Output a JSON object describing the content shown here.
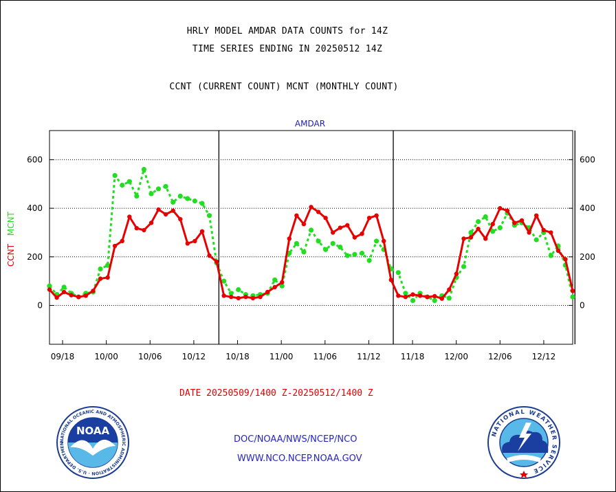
{
  "header": {
    "title_line1": "HRLY MODEL AMDAR DATA COUNTS for 14Z",
    "title_line2": "TIME SERIES ENDING IN 20250512 14Z",
    "subtitle": "CCNT (CURRENT COUNT) MCNT (MONTHLY COUNT)"
  },
  "footer": {
    "date_range": "DATE 20250509/1400 Z-20250512/1400 Z",
    "credit_line1": "DOC/NOAA/NWS/NCEP/NCO",
    "credit_line2": "WWW.NCO.NCEP.NOAA.GOV"
  },
  "logos": {
    "left": "noaa-logo",
    "right": "national-weather-service-logo",
    "left_text": "NOAA",
    "left_ring_text": "NATIONAL OCEANIC AND ATMOSPHERIC ADMINISTRATION · U.S. DEPARTMENT OF COMMERCE",
    "right_ring_text": "NATIONAL WEATHER SERVICE"
  },
  "colors": {
    "ccnt": "#e60000",
    "mcnt": "#22dd22",
    "panel_label": "#2020c0",
    "frame": "#000000"
  },
  "chart_data": {
    "type": "line",
    "title": "AMDAR",
    "ylabel_left": [
      "CCNT",
      "MCNT"
    ],
    "ylim": [
      -160,
      720
    ],
    "yticks": [
      0,
      200,
      400,
      600
    ],
    "grid": "horizontal dotted at y ticks",
    "xticks": [
      "09/18",
      "10/00",
      "10/06",
      "10/12",
      "10/18",
      "11/00",
      "11/06",
      "11/12",
      "11/18",
      "12/00",
      "12/06",
      "12/12"
    ],
    "day_separators_after_hour_index": [
      23,
      47,
      72
    ],
    "series": [
      {
        "name": "CCNT",
        "values": [
          65,
          32,
          55,
          42,
          35,
          40,
          60,
          110,
          115,
          245,
          265,
          365,
          318,
          310,
          340,
          395,
          375,
          390,
          355,
          255,
          265,
          305,
          205,
          180,
          40,
          35,
          30,
          35,
          30,
          35,
          55,
          75,
          95,
          275,
          370,
          335,
          405,
          385,
          360,
          300,
          320,
          330,
          280,
          295,
          360,
          370,
          265,
          105,
          40,
          35,
          45,
          40,
          35,
          38,
          28,
          65,
          130,
          275,
          280,
          315,
          275,
          335,
          400,
          390,
          340,
          350,
          300,
          370,
          310,
          300,
          225,
          190,
          60
        ]
      },
      {
        "name": "MCNT",
        "values": [
          80,
          45,
          75,
          50,
          35,
          50,
          55,
          150,
          165,
          535,
          495,
          510,
          450,
          560,
          460,
          480,
          490,
          425,
          450,
          440,
          430,
          420,
          370,
          175,
          100,
          50,
          65,
          45,
          40,
          45,
          50,
          105,
          80,
          215,
          255,
          220,
          310,
          265,
          230,
          255,
          240,
          205,
          210,
          215,
          185,
          265,
          230,
          150,
          135,
          50,
          20,
          50,
          35,
          20,
          40,
          30,
          115,
          160,
          300,
          345,
          365,
          305,
          320,
          380,
          330,
          340,
          320,
          270,
          300,
          205,
          245,
          165,
          35
        ]
      }
    ]
  }
}
